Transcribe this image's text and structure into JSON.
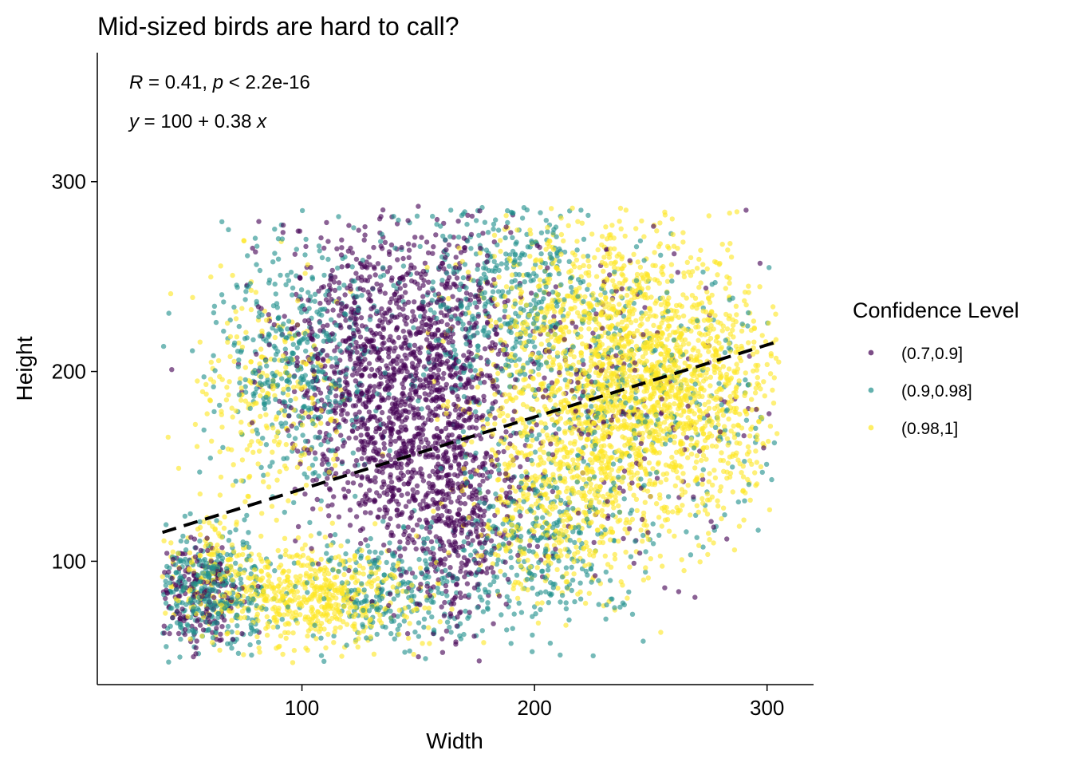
{
  "chart_data": {
    "type": "scatter",
    "title": "Mid-sized birds are hard to call?",
    "xlabel": "Width",
    "ylabel": "Height",
    "xlim": [
      12,
      320
    ],
    "ylim": [
      35,
      368
    ],
    "x_ticks": [
      100,
      200,
      300
    ],
    "y_ticks": [
      100,
      200,
      300
    ],
    "grid": false,
    "annotations": {
      "stat_r_label": "R",
      "stat_r_value": " = 0.41, ",
      "stat_p_label": "p",
      "stat_p_value": " < 2.2e-16",
      "eq_y": "y",
      "eq_body": " = 100 + 0.38 ",
      "eq_x": "x"
    },
    "regression": {
      "intercept": 100,
      "slope": 0.38,
      "x_range": [
        40,
        305
      ],
      "style": "dashed",
      "color": "#000000"
    },
    "legend": {
      "title": "Confidence Level",
      "position": "right"
    },
    "series": [
      {
        "name": "(0.7,0.9]",
        "color": "#440154",
        "clusters": [
          {
            "cx": 125,
            "cy": 205,
            "sx": 18,
            "sy": 38,
            "n": 700
          },
          {
            "cx": 160,
            "cy": 210,
            "sx": 15,
            "sy": 35,
            "n": 600
          },
          {
            "cx": 165,
            "cy": 125,
            "sx": 14,
            "sy": 30,
            "n": 500
          },
          {
            "cx": 55,
            "cy": 80,
            "sx": 10,
            "sy": 15,
            "n": 180
          },
          {
            "cx": 135,
            "cy": 150,
            "sx": 10,
            "sy": 22,
            "n": 180
          },
          {
            "cx": 230,
            "cy": 180,
            "sx": 30,
            "sy": 40,
            "n": 220
          }
        ],
        "points": [
          [
            44,
            201
          ],
          [
            80,
            263
          ],
          [
            150,
            287
          ],
          [
            291,
            285
          ],
          [
            297,
            257
          ],
          [
            256,
            86
          ],
          [
            269,
            81
          ],
          [
            262,
            84
          ]
        ]
      },
      {
        "name": "(0.9,0.98]",
        "color": "#21908C",
        "clusters": [
          {
            "cx": 100,
            "cy": 210,
            "sx": 18,
            "sy": 35,
            "n": 450
          },
          {
            "cx": 185,
            "cy": 240,
            "sx": 18,
            "sy": 30,
            "n": 420
          },
          {
            "cx": 60,
            "cy": 85,
            "sx": 14,
            "sy": 14,
            "n": 350
          },
          {
            "cx": 140,
            "cy": 85,
            "sx": 20,
            "sy": 14,
            "n": 260
          },
          {
            "cx": 200,
            "cy": 110,
            "sx": 20,
            "sy": 25,
            "n": 320
          },
          {
            "cx": 245,
            "cy": 190,
            "sx": 30,
            "sy": 40,
            "n": 320
          }
        ],
        "points": [
          [
            52,
            125
          ],
          [
            56,
            147
          ],
          [
            200,
            76
          ],
          [
            212,
            82
          ],
          [
            231,
            77
          ],
          [
            238,
            78
          ],
          [
            302,
            143
          ],
          [
            220,
            285
          ],
          [
            164,
            285
          ]
        ]
      },
      {
        "name": "(0.98,1]",
        "color": "#FDE725",
        "clusters": [
          {
            "cx": 255,
            "cy": 185,
            "sx": 25,
            "sy": 32,
            "n": 1300
          },
          {
            "cx": 225,
            "cy": 225,
            "sx": 28,
            "sy": 30,
            "n": 700
          },
          {
            "cx": 210,
            "cy": 140,
            "sx": 20,
            "sy": 28,
            "n": 600
          },
          {
            "cx": 105,
            "cy": 80,
            "sx": 22,
            "sy": 13,
            "n": 550
          },
          {
            "cx": 85,
            "cy": 185,
            "sx": 16,
            "sy": 30,
            "n": 250
          },
          {
            "cx": 60,
            "cy": 95,
            "sx": 10,
            "sy": 15,
            "n": 150
          }
        ],
        "points": [
          [
            53,
            239
          ],
          [
            55,
            195
          ],
          [
            47,
            149
          ],
          [
            75,
            269
          ],
          [
            237,
            286
          ],
          [
            256,
            284
          ],
          [
            275,
            282
          ],
          [
            305,
            205
          ]
        ]
      }
    ]
  }
}
